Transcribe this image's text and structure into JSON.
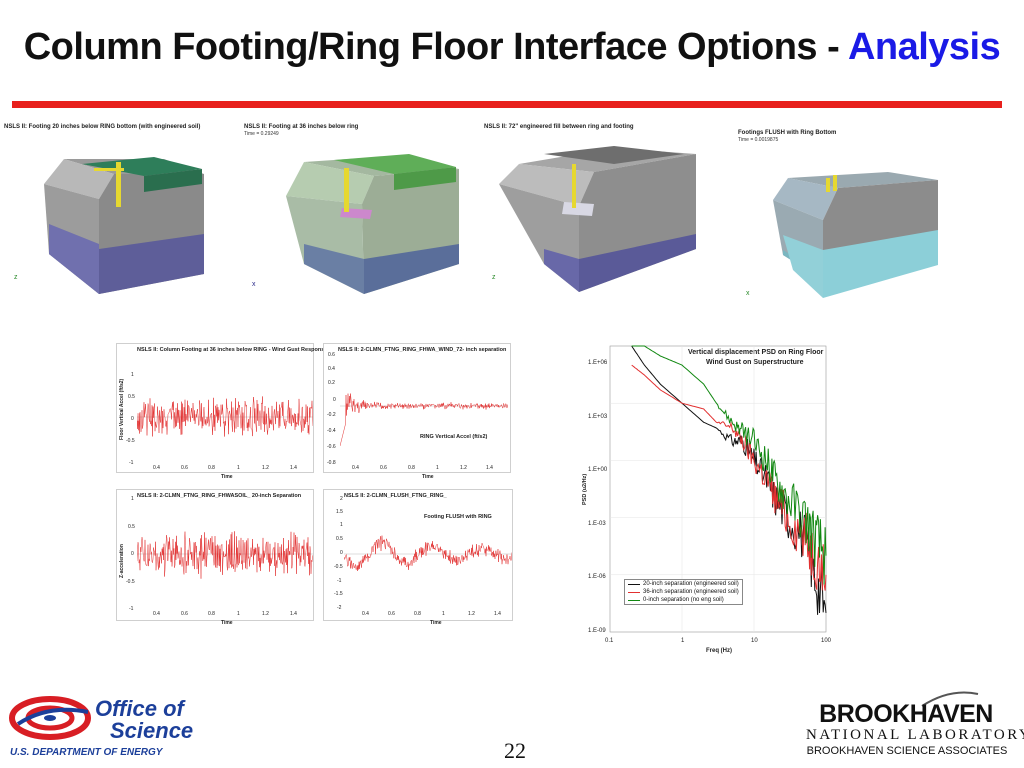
{
  "slide": {
    "title_main": "Column Footing/Ring Floor Interface Options - ",
    "title_accent": "Analysis",
    "page_number": "22"
  },
  "colors": {
    "accent": "#1a1ae6",
    "rule": "#e8201c",
    "doe_blue": "#1c3f9a",
    "trace_red": "#e23030",
    "trace_black": "#111111",
    "trace_green": "#118811"
  },
  "models": [
    {
      "caption": "NSLS II: Footing 20 inches below RING bottom (with engineered soil)",
      "subcaption": ""
    },
    {
      "caption": "NSLS II: Footing at 36 inches below ring",
      "subcaption": "Time =     0.29249"
    },
    {
      "caption": "NSLS II: 72\" engineered fill between ring and footing",
      "subcaption": ""
    },
    {
      "caption": "Footings FLUSH with Ring Bottom",
      "subcaption": "Time =   0.0019875"
    }
  ],
  "plots": {
    "p1": {
      "title": "NSLS II: Column Footing at 36 inches below RING - Wind Gust Response",
      "ylabel": "Floor Vertical Accel (ft/s2)",
      "xlabel": "Time",
      "yticks": [
        "1",
        "0.5",
        "0",
        "-0.5",
        "-1"
      ],
      "xticks": [
        "0.4",
        "0.6",
        "0.8",
        "1",
        "1.2",
        "1.4"
      ]
    },
    "p2": {
      "title": "NSLS II: 2-CLMN_FTNG_RING_FHWA_WIND_72- inch separation",
      "inner": "RING Vertical Accel  (ft/s2)",
      "xlabel": "Time",
      "yticks": [
        "0.6",
        "0.4",
        "0.2",
        "0",
        "-0.2",
        "-0.4",
        "-0.6",
        "-0.8"
      ],
      "xticks": [
        "0.4",
        "0.6",
        "0.8",
        "1",
        "1.2",
        "1.4"
      ]
    },
    "p3": {
      "title": "NSLS II: 2-CLMN_FTNG_RING_FHWASOIL_ 20-inch Separation",
      "ylabel": "Z-acceleration",
      "xlabel": "Time",
      "yticks": [
        "1",
        "0.5",
        "0",
        "-0.5",
        "-1"
      ],
      "xticks": [
        "0.4",
        "0.6",
        "0.8",
        "1",
        "1.2",
        "1.4"
      ]
    },
    "p4": {
      "title": "NSLS II: 2-CLMN_FLUSH_FTNG_RING_",
      "inner": "Footing FLUSH with RING",
      "xlabel": "Time",
      "yticks": [
        "2",
        "1.5",
        "1",
        "0.5",
        "0",
        "-0.5",
        "-1",
        "-1.5",
        "-2"
      ],
      "xticks": [
        "0.4",
        "0.6",
        "0.8",
        "1",
        "1.2",
        "1.4"
      ]
    }
  },
  "psd": {
    "title_line1": "Vertical displacement PSD on Ring Floor",
    "title_line2": "Wind Gust on Superstructure",
    "ylabel": "PSD (u2/Hz)",
    "xlabel": "Freq (Hz)",
    "yticks": [
      "1.E+06",
      "1.E+03",
      "1.E+00",
      "1.E-03",
      "1.E-06",
      "1.E-09"
    ],
    "xticks": [
      "0.1",
      "1",
      "10",
      "100"
    ],
    "legend": [
      "20-inch separation (engineered soil)",
      "36-inch separation (engineered soil)",
      "0-inch separation (no eng soil)"
    ]
  },
  "chart_data": {
    "type": "line",
    "title": "Vertical displacement PSD on Ring Floor Wind Gust on Superstructure",
    "xlabel": "Freq (Hz)",
    "ylabel": "PSD (u2/Hz)",
    "xscale": "log",
    "yscale": "log",
    "xlim": [
      0.1,
      100
    ],
    "ylim": [
      1e-09,
      1000000.0
    ],
    "legend_position": "bottom-left",
    "x": [
      0.2,
      0.3,
      0.5,
      1,
      2,
      3,
      5,
      7,
      10,
      15,
      20,
      30,
      50,
      70,
      100
    ],
    "series": [
      {
        "name": "20-inch separation (engineered soil)",
        "color": "#111111",
        "values": [
          1000000.0,
          100000.0,
          10000.0,
          1000.0,
          100,
          50,
          10,
          10,
          1,
          0.1,
          0.01,
          0.001,
          0.0001,
          1e-06,
          1e-08
        ]
      },
      {
        "name": "36-inch separation (engineered soil)",
        "color": "#e23030",
        "values": [
          100000.0,
          30000.0,
          5000.0,
          1000.0,
          500,
          100,
          50,
          10,
          1,
          0.1,
          0.01,
          0.001,
          0.0001,
          1e-05,
          1e-06
        ]
      },
      {
        "name": "0-inch separation (no eng soil)",
        "color": "#118811",
        "values": [
          10000000.0,
          1000000.0,
          300000.0,
          100000.0,
          10000.0,
          1000.0,
          100,
          30,
          10,
          1,
          0.1,
          0.01,
          0.001,
          0.0001,
          1e-05
        ]
      }
    ]
  },
  "logos": {
    "office_line1": "Office of",
    "office_line2": "Science",
    "doe": "U.S. DEPARTMENT OF ENERGY",
    "bnl_name": "BROOKHAVEN",
    "bnl_lab": "NATIONAL LABORATORY",
    "bnl_assoc": "BROOKHAVEN SCIENCE ASSOCIATES"
  }
}
